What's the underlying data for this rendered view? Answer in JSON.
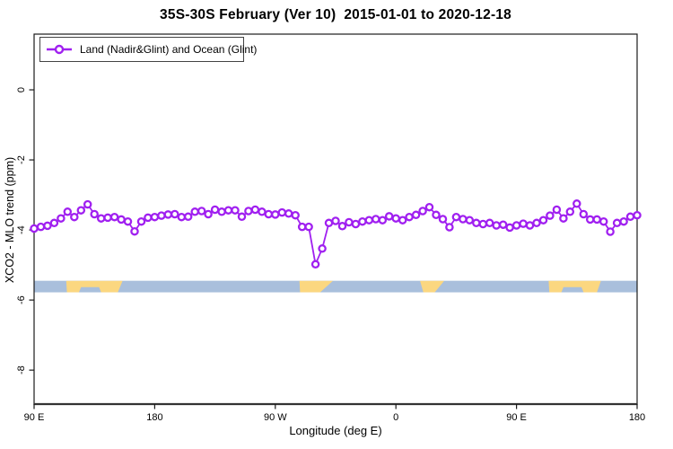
{
  "header": {
    "title": "35S-30S February (Ver 10)  2015-01-01 to 2020-12-18"
  },
  "legend": {
    "label": "Land (Nadir&Glint) and Ocean (Glint)",
    "marker": "open-circle-on-line",
    "color": "#A020F0"
  },
  "colors": {
    "series_purple": "#A020F0",
    "ocean_blue": "#A9BFDC",
    "land_yellow": "#FBD780",
    "axis_black": "#1a1a1a"
  },
  "chart_data": {
    "type": "line",
    "title": "35S-30S February (Ver 10)  2015-01-01 to 2020-12-18",
    "xlabel": "Longitude (deg E)",
    "ylabel": "XCO2 - MLO trend (ppm)",
    "xlim": [
      90,
      540
    ],
    "ylim": [
      -8.97,
      1.59
    ],
    "grid": false,
    "legend_position": "top-left",
    "x_ticks": [
      {
        "pos": 90,
        "label": "90 E"
      },
      {
        "pos": 180,
        "label": "180"
      },
      {
        "pos": 270,
        "label": "90 W"
      },
      {
        "pos": 360,
        "label": "0"
      },
      {
        "pos": 450,
        "label": "90 E"
      },
      {
        "pos": 540,
        "label": "180"
      }
    ],
    "y_ticks": [
      {
        "pos": 0,
        "label": "0"
      },
      {
        "pos": -2,
        "label": "-2"
      },
      {
        "pos": -4,
        "label": "-4"
      },
      {
        "pos": -6,
        "label": "-6"
      },
      {
        "pos": -8,
        "label": "-8"
      }
    ],
    "series": [
      {
        "name": "Land (Nadir&Glint) and Ocean (Glint)",
        "color": "#A020F0",
        "marker": "open-circle",
        "x_start": 90,
        "x_step": 5,
        "y": [
          -3.96,
          -3.91,
          -3.88,
          -3.8,
          -3.67,
          -3.48,
          -3.63,
          -3.44,
          -3.27,
          -3.55,
          -3.67,
          -3.65,
          -3.63,
          -3.7,
          -3.76,
          -4.04,
          -3.76,
          -3.65,
          -3.63,
          -3.59,
          -3.56,
          -3.55,
          -3.63,
          -3.62,
          -3.48,
          -3.46,
          -3.55,
          -3.42,
          -3.48,
          -3.44,
          -3.44,
          -3.62,
          -3.46,
          -3.42,
          -3.48,
          -3.55,
          -3.56,
          -3.5,
          -3.53,
          -3.58,
          -3.91,
          -3.91,
          -4.98,
          -4.53,
          -3.8,
          -3.74,
          -3.89,
          -3.78,
          -3.83,
          -3.76,
          -3.72,
          -3.69,
          -3.72,
          -3.61,
          -3.67,
          -3.72,
          -3.63,
          -3.57,
          -3.46,
          -3.35,
          -3.57,
          -3.69,
          -3.92,
          -3.63,
          -3.69,
          -3.72,
          -3.8,
          -3.83,
          -3.8,
          -3.87,
          -3.85,
          -3.93,
          -3.87,
          -3.82,
          -3.87,
          -3.8,
          -3.72,
          -3.59,
          -3.42,
          -3.67,
          -3.48,
          -3.25,
          -3.55,
          -3.7,
          -3.7,
          -3.76,
          -4.05,
          -3.8,
          -3.76,
          -3.62,
          -3.58
        ]
      }
    ],
    "map_band": {
      "description": "35S-30S latitude strip map: ocean with land masses (Australia, South America, South Africa, Australia)",
      "ocean_color": "#A9BFDC",
      "land_color": "#FBD780",
      "ppm_top": -5.45,
      "ppm_bottom": -5.78,
      "land_polygons": [
        [
          [
            114,
            0
          ],
          [
            156,
            0
          ],
          [
            152.5,
            1
          ],
          [
            140,
            1
          ],
          [
            138.5,
            0.55
          ],
          [
            125,
            0.55
          ],
          [
            123.5,
            1
          ],
          [
            114.5,
            1
          ]
        ],
        [
          [
            288,
            0
          ],
          [
            313,
            0
          ],
          [
            303.5,
            1
          ],
          [
            288.5,
            1
          ]
        ],
        [
          [
            378,
            0
          ],
          [
            396,
            0
          ],
          [
            389,
            1
          ],
          [
            380.5,
            1
          ]
        ],
        [
          [
            474,
            0
          ],
          [
            513,
            0
          ],
          [
            510,
            1
          ],
          [
            500,
            1
          ],
          [
            498.5,
            0.55
          ],
          [
            485,
            0.55
          ],
          [
            483.5,
            1
          ],
          [
            474.5,
            1
          ]
        ]
      ]
    }
  }
}
